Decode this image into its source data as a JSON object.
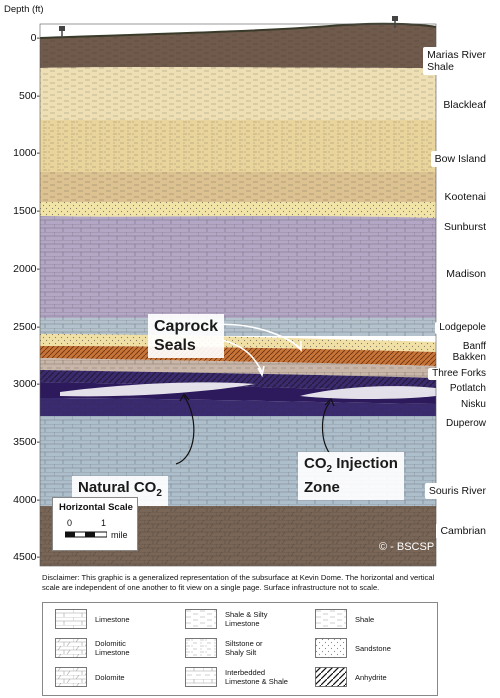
{
  "axis": {
    "title": "Depth (ft)",
    "ticks": [
      "0",
      "500",
      "1000",
      "1500",
      "2000",
      "2500",
      "3000",
      "3500",
      "4000",
      "4500"
    ]
  },
  "formations": [
    {
      "name": "Marias River Shale",
      "lines": [
        "Marias River",
        "Shale"
      ]
    },
    {
      "name": "Blackleaf",
      "lines": [
        "Blackleaf"
      ]
    },
    {
      "name": "Bow Island",
      "lines": [
        "Bow Island"
      ]
    },
    {
      "name": "Kootenai",
      "lines": [
        "Kootenai"
      ]
    },
    {
      "name": "Sunburst",
      "lines": [
        "Sunburst"
      ]
    },
    {
      "name": "Madison",
      "lines": [
        "Madison"
      ]
    },
    {
      "name": "Lodgepole",
      "lines": [
        "Lodgepole"
      ]
    },
    {
      "name": "Banff",
      "lines": [
        "Banff"
      ]
    },
    {
      "name": "Bakken",
      "lines": [
        "Bakken"
      ]
    },
    {
      "name": "Three Forks",
      "lines": [
        "Three Forks"
      ]
    },
    {
      "name": "Potlatch",
      "lines": [
        "Potlatch"
      ]
    },
    {
      "name": "Nisku",
      "lines": [
        "Nisku"
      ]
    },
    {
      "name": "Duperow",
      "lines": [
        "Duperow"
      ]
    },
    {
      "name": "Souris River",
      "lines": [
        "Souris River"
      ]
    },
    {
      "name": "Cambrian",
      "lines": [
        "Cambrian"
      ]
    }
  ],
  "callouts": {
    "caprock": [
      "Caprock",
      "Seals"
    ],
    "natural_co2": {
      "text": "Natural CO",
      "sub": "2"
    },
    "injection": {
      "line1_text": "CO",
      "line1_sub": "2",
      "line1_rest": " Injection",
      "line2": "Zone"
    }
  },
  "scale": {
    "title": "Horizontal Scale",
    "zero": "0",
    "one": "1",
    "unit": "mile"
  },
  "copyright": "© - BSCSP",
  "disclaimer": "Disclaimer: This graphic is a generalized representation of the subsurface at Kevin Dome. The horizontal and vertical scale are independent of one another to fit view on a single page. Surface infrastructure not to scale.",
  "legend": [
    {
      "icon": "limestone-pattern-icon",
      "lines": [
        "Limestone"
      ]
    },
    {
      "icon": "dolomitic-limestone-pattern-icon",
      "lines": [
        "Dolomitic",
        "Limestone"
      ]
    },
    {
      "icon": "dolomite-pattern-icon",
      "lines": [
        "Dolomite"
      ]
    },
    {
      "icon": "shale-silty-limestone-pattern-icon",
      "lines": [
        "Shale & Silty",
        "Limestone"
      ]
    },
    {
      "icon": "siltstone-pattern-icon",
      "lines": [
        "Siltstone or",
        "Shaly Silt"
      ]
    },
    {
      "icon": "interbedded-pattern-icon",
      "lines": [
        "Interbedded",
        "Limestone & Shale"
      ]
    },
    {
      "icon": "shale-pattern-icon",
      "lines": [
        "Shale"
      ]
    },
    {
      "icon": "sandstone-pattern-icon",
      "lines": [
        "Sandstone"
      ]
    },
    {
      "icon": "anhydrite-pattern-icon",
      "lines": [
        "Anhydrite"
      ]
    }
  ],
  "colors": {
    "shale_brown": "#6f5a4c",
    "blackleaf": "#eee0b4",
    "bow_island": "#e9d49c",
    "kootenai": "#dcc191",
    "sunburst": "#f1e4a6",
    "madison": "#b4a7c5",
    "lodgepole": "#b3c2cd",
    "banff": "#f1e0a5",
    "bakken": "#c77438",
    "nisku": "#2d1a5c",
    "duperow": "#aebfcc",
    "cambrian": "#7a6656"
  }
}
